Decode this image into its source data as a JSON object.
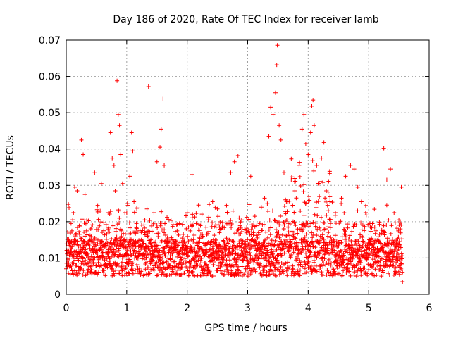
{
  "chart_data": {
    "type": "scatter",
    "title": "Day 186 of 2020, Rate Of TEC Index for receiver lamb",
    "xlabel": "GPS time / hours",
    "ylabel": "ROTI / TECUs",
    "xlim": [
      0,
      6
    ],
    "ylim": [
      0,
      0.07
    ],
    "xticks": [
      "0",
      "1",
      "2",
      "3",
      "4",
      "5",
      "6"
    ],
    "yticks": [
      "0",
      "0.01",
      "0.02",
      "0.03",
      "0.04",
      "0.05",
      "0.06",
      "0.07"
    ],
    "grid": true,
    "marker": "+",
    "color": "#ff0000",
    "x_extent": [
      0.0,
      5.56
    ],
    "series": [
      {
        "name": "ROTI",
        "points": [
          [
            0.03,
            0.0095
          ],
          [
            0.05,
            0.0135
          ],
          [
            0.08,
            0.0195
          ],
          [
            0.12,
            0.0225
          ],
          [
            0.14,
            0.0295
          ],
          [
            0.18,
            0.0285
          ],
          [
            0.22,
            0.0165
          ],
          [
            0.25,
            0.0425
          ],
          [
            0.28,
            0.0385
          ],
          [
            0.31,
            0.0275
          ],
          [
            0.34,
            0.0205
          ],
          [
            0.37,
            0.0145
          ],
          [
            0.42,
            0.0185
          ],
          [
            0.47,
            0.0335
          ],
          [
            0.52,
            0.0245
          ],
          [
            0.58,
            0.0305
          ],
          [
            0.62,
            0.0175
          ],
          [
            0.66,
            0.0125
          ],
          [
            0.7,
            0.0225
          ],
          [
            0.73,
            0.0445
          ],
          [
            0.76,
            0.0375
          ],
          [
            0.79,
            0.0355
          ],
          [
            0.81,
            0.0285
          ],
          [
            0.84,
            0.0588
          ],
          [
            0.86,
            0.0495
          ],
          [
            0.88,
            0.0465
          ],
          [
            0.9,
            0.0385
          ],
          [
            0.93,
            0.0305
          ],
          [
            0.97,
            0.0225
          ],
          [
            1.02,
            0.0245
          ],
          [
            1.05,
            0.0325
          ],
          [
            1.08,
            0.0445
          ],
          [
            1.1,
            0.0395
          ],
          [
            1.12,
            0.0255
          ],
          [
            1.16,
            0.0195
          ],
          [
            1.22,
            0.0175
          ],
          [
            1.3,
            0.0205
          ],
          [
            1.36,
            0.0572
          ],
          [
            1.45,
            0.0225
          ],
          [
            1.5,
            0.0365
          ],
          [
            1.55,
            0.0405
          ],
          [
            1.57,
            0.0455
          ],
          [
            1.6,
            0.0538
          ],
          [
            1.62,
            0.0355
          ],
          [
            1.7,
            0.0145
          ],
          [
            1.8,
            0.0115
          ],
          [
            1.92,
            0.0155
          ],
          [
            2.0,
            0.0225
          ],
          [
            2.08,
            0.033
          ],
          [
            2.15,
            0.0195
          ],
          [
            2.25,
            0.0165
          ],
          [
            2.35,
            0.0205
          ],
          [
            2.42,
            0.0255
          ],
          [
            2.5,
            0.0235
          ],
          [
            2.58,
            0.0185
          ],
          [
            2.65,
            0.0245
          ],
          [
            2.72,
            0.0335
          ],
          [
            2.78,
            0.0365
          ],
          [
            2.84,
            0.0382
          ],
          [
            2.9,
            0.0205
          ],
          [
            2.98,
            0.0175
          ],
          [
            3.05,
            0.0325
          ],
          [
            3.12,
            0.0215
          ],
          [
            3.2,
            0.0195
          ],
          [
            3.28,
            0.0265
          ],
          [
            3.35,
            0.0435
          ],
          [
            3.38,
            0.0515
          ],
          [
            3.42,
            0.0495
          ],
          [
            3.46,
            0.0555
          ],
          [
            3.48,
            0.0632
          ],
          [
            3.49,
            0.0686
          ],
          [
            3.52,
            0.0465
          ],
          [
            3.55,
            0.0425
          ],
          [
            3.6,
            0.0335
          ],
          [
            3.66,
            0.0255
          ],
          [
            3.72,
            0.0315
          ],
          [
            3.78,
            0.0285
          ],
          [
            3.85,
            0.0355
          ],
          [
            3.9,
            0.0455
          ],
          [
            3.93,
            0.0495
          ],
          [
            3.96,
            0.0415
          ],
          [
            4.0,
            0.0385
          ],
          [
            4.04,
            0.0445
          ],
          [
            4.06,
            0.0518
          ],
          [
            4.08,
            0.0535
          ],
          [
            4.1,
            0.0465
          ],
          [
            4.14,
            0.0355
          ],
          [
            4.18,
            0.0305
          ],
          [
            4.22,
            0.0375
          ],
          [
            4.26,
            0.0418
          ],
          [
            4.3,
            0.0285
          ],
          [
            4.36,
            0.0255
          ],
          [
            4.45,
            0.0225
          ],
          [
            4.55,
            0.0265
          ],
          [
            4.62,
            0.0325
          ],
          [
            4.7,
            0.0355
          ],
          [
            4.76,
            0.0345
          ],
          [
            4.82,
            0.0295
          ],
          [
            4.88,
            0.0255
          ],
          [
            4.95,
            0.0225
          ],
          [
            5.02,
            0.0195
          ],
          [
            5.1,
            0.0185
          ],
          [
            5.18,
            0.0165
          ],
          [
            5.25,
            0.0402
          ],
          [
            5.3,
            0.0315
          ],
          [
            5.36,
            0.0345
          ],
          [
            5.42,
            0.0225
          ],
          [
            5.5,
            0.0205
          ],
          [
            5.54,
            0.0295
          ],
          [
            5.56,
            0.0035
          ]
        ]
      }
    ],
    "note": "Dense band of background points roughly 0.004–0.018 TECU across 0–5.56 h"
  }
}
